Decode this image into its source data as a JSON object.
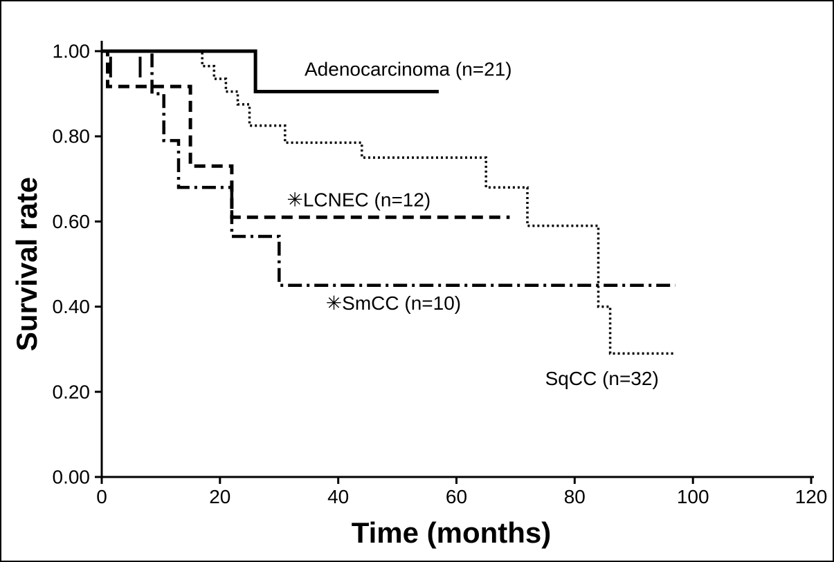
{
  "figure": {
    "background": "#ffffff",
    "border_color": "#000000",
    "line_color": "#000000"
  },
  "chart_data": {
    "type": "line",
    "subtype": "kaplan_meier_step",
    "title": "",
    "xlabel": "Time (months)",
    "ylabel": "Survival rate",
    "xlim": [
      0,
      120
    ],
    "ylim": [
      0,
      1
    ],
    "xticks": [
      0,
      20,
      40,
      60,
      80,
      100,
      120
    ],
    "xtick_labels": [
      "0",
      "20",
      "40",
      "60",
      "80",
      "100",
      "120"
    ],
    "yticks": [
      0,
      0.2,
      0.4,
      0.6,
      0.8,
      1.0
    ],
    "ytick_labels": [
      "0.00",
      "0.20",
      "0.40",
      "0.60",
      "0.80",
      "1.00"
    ],
    "grid": false,
    "legend": "inline-annotations",
    "series": [
      {
        "id": "adenocarcinoma",
        "name": "Adenocarcinoma",
        "n": 21,
        "label": "Adenocarcinoma (n=21)",
        "line_style": "solid",
        "points": [
          [
            0,
            1.0
          ],
          [
            26,
            0.905
          ]
        ],
        "end_time": 57,
        "censor_marks": [
          [
            1.5,
            1.0
          ],
          [
            6.5,
            1.0
          ]
        ],
        "label_anchor": {
          "t": 34.3,
          "s": 0.958
        }
      },
      {
        "id": "lcnec",
        "name": "LCNEC",
        "n": 12,
        "label": "✳LCNEC (n=12)",
        "line_style": "dashed",
        "points": [
          [
            0,
            1.0
          ],
          [
            1,
            0.917
          ],
          [
            15,
            0.73
          ],
          [
            22,
            0.61
          ]
        ],
        "end_time": 69,
        "censor_marks": [],
        "label_anchor": {
          "t": 31.3,
          "s": 0.651
        }
      },
      {
        "id": "smcc",
        "name": "SmCC",
        "n": 10,
        "label": "✳SmCC (n=10)",
        "line_style": "dashdot",
        "points": [
          [
            0,
            1.0
          ],
          [
            8.5,
            0.9
          ],
          [
            10.5,
            0.79
          ],
          [
            13,
            0.68
          ],
          [
            22,
            0.565
          ],
          [
            30,
            0.45
          ]
        ],
        "end_time": 97,
        "censor_marks": [],
        "label_anchor": {
          "t": 37.9,
          "s": 0.408
        }
      },
      {
        "id": "sqcc",
        "name": "SqCC",
        "n": 32,
        "label": "SqCC (n=32)",
        "line_style": "dotted",
        "points": [
          [
            0,
            1.0
          ],
          [
            17,
            0.965
          ],
          [
            19,
            0.935
          ],
          [
            21,
            0.905
          ],
          [
            23,
            0.875
          ],
          [
            25,
            0.825
          ],
          [
            31,
            0.785
          ],
          [
            44,
            0.75
          ],
          [
            65,
            0.68
          ],
          [
            72,
            0.59
          ],
          [
            84,
            0.4
          ],
          [
            86,
            0.29
          ]
        ],
        "end_time": 97,
        "censor_marks": [],
        "label_anchor": {
          "t": 75.0,
          "s": 0.231
        }
      }
    ]
  }
}
